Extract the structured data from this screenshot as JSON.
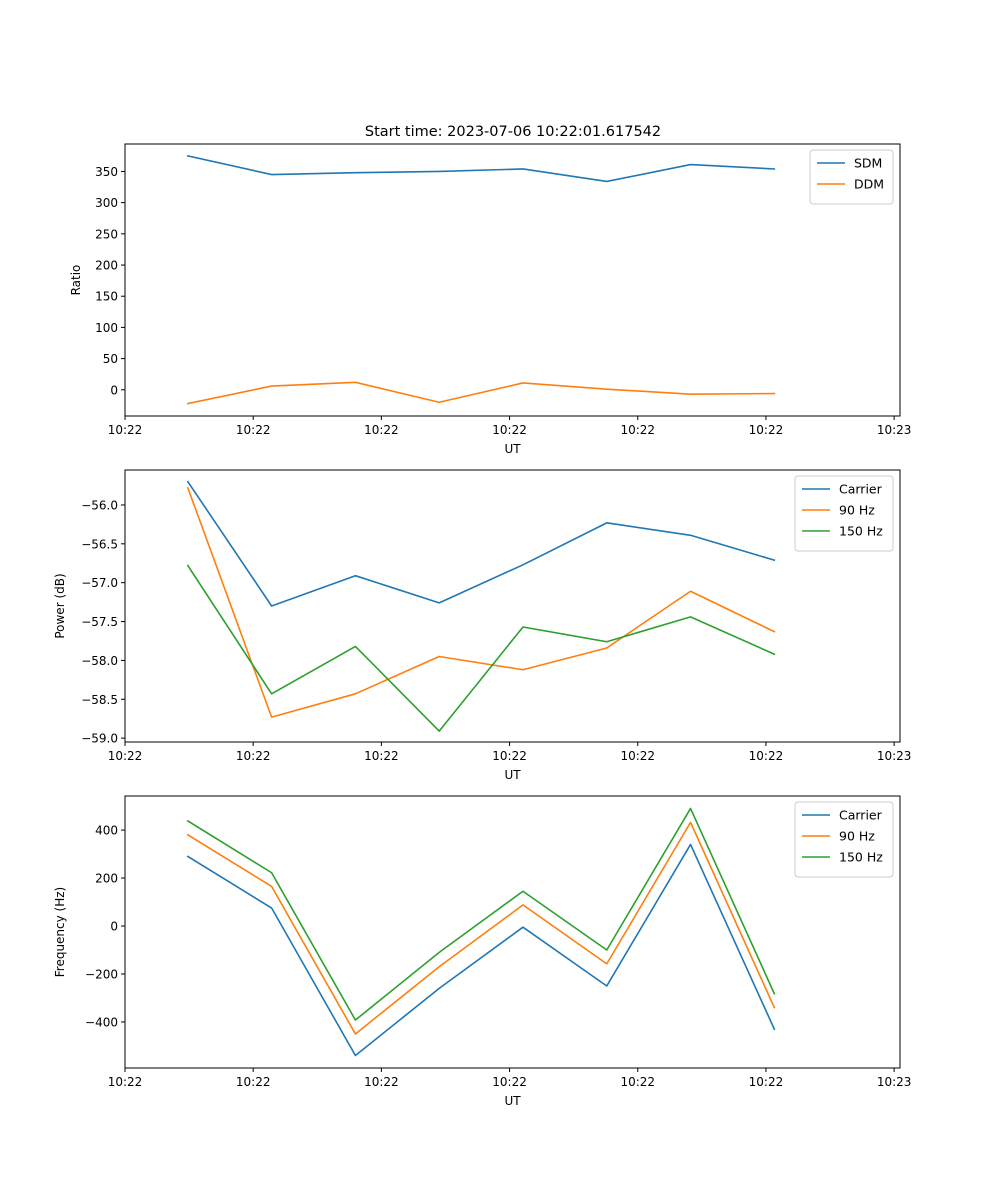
{
  "chart_data": [
    {
      "type": "line",
      "title": "Start time: 2023-07-06 10:22:01.617542",
      "xlabel": "UT",
      "ylabel": "Ratio",
      "x": [
        0,
        1,
        2,
        3,
        4,
        5,
        6,
        7
      ],
      "xlim": [
        -0.75,
        8.5
      ],
      "x_ticks": [
        {
          "x": -0.75,
          "label": "10:22"
        },
        {
          "x": 0.78,
          "label": "10:22"
        },
        {
          "x": 2.31,
          "label": "10:22"
        },
        {
          "x": 3.84,
          "label": "10:22"
        },
        {
          "x": 5.37,
          "label": "10:22"
        },
        {
          "x": 6.9,
          "label": "10:22"
        },
        {
          "x": 8.43,
          "label": "10:23"
        }
      ],
      "ylim": [
        -42,
        394
      ],
      "y_ticks": [
        {
          "y": 0,
          "label": "0"
        },
        {
          "y": 50,
          "label": "50"
        },
        {
          "y": 100,
          "label": "100"
        },
        {
          "y": 150,
          "label": "150"
        },
        {
          "y": 200,
          "label": "200"
        },
        {
          "y": 250,
          "label": "250"
        },
        {
          "y": 300,
          "label": "300"
        },
        {
          "y": 350,
          "label": "350"
        }
      ],
      "legend_position": "top-right",
      "series": [
        {
          "name": "SDM",
          "color": "#1f77b4",
          "values": [
            375,
            345,
            348,
            350,
            354,
            334,
            361,
            354
          ]
        },
        {
          "name": "DDM",
          "color": "#ff7f0e",
          "values": [
            -22,
            6,
            12,
            -20,
            11,
            1,
            -7,
            -6
          ]
        }
      ]
    },
    {
      "type": "line",
      "title": "",
      "xlabel": "UT",
      "ylabel": "Power (dB)",
      "x": [
        0,
        1,
        2,
        3,
        4,
        5,
        6,
        7
      ],
      "xlim": [
        -0.75,
        8.5
      ],
      "x_ticks": [
        {
          "x": -0.75,
          "label": "10:22"
        },
        {
          "x": 0.78,
          "label": "10:22"
        },
        {
          "x": 2.31,
          "label": "10:22"
        },
        {
          "x": 3.84,
          "label": "10:22"
        },
        {
          "x": 5.37,
          "label": "10:22"
        },
        {
          "x": 6.9,
          "label": "10:22"
        },
        {
          "x": 8.43,
          "label": "10:23"
        }
      ],
      "ylim": [
        -59.05,
        -55.55
      ],
      "y_ticks": [
        {
          "y": -59.0,
          "label": "−59.0"
        },
        {
          "y": -58.5,
          "label": "−58.5"
        },
        {
          "y": -58.0,
          "label": "−58.0"
        },
        {
          "y": -57.5,
          "label": "−57.5"
        },
        {
          "y": -57.0,
          "label": "−57.0"
        },
        {
          "y": -56.5,
          "label": "−56.5"
        },
        {
          "y": -56.0,
          "label": "−56.0"
        }
      ],
      "legend_position": "top-right",
      "series": [
        {
          "name": "Carrier",
          "color": "#1f77b4",
          "values": [
            -55.7,
            -57.3,
            -56.91,
            -57.26,
            -56.77,
            -56.23,
            -56.39,
            -56.71
          ]
        },
        {
          "name": "90 Hz",
          "color": "#ff7f0e",
          "values": [
            -55.78,
            -58.73,
            -58.43,
            -57.95,
            -58.12,
            -57.84,
            -57.11,
            -57.63
          ]
        },
        {
          "name": "150 Hz",
          "color": "#2ca02c",
          "values": [
            -56.78,
            -58.43,
            -57.82,
            -58.91,
            -57.57,
            -57.76,
            -57.44,
            -57.92
          ]
        }
      ]
    },
    {
      "type": "line",
      "title": "",
      "xlabel": "UT",
      "ylabel": "Frequency (Hz)",
      "x": [
        0,
        1,
        2,
        3,
        4,
        5,
        6,
        7
      ],
      "xlim": [
        -0.75,
        8.5
      ],
      "x_ticks": [
        {
          "x": -0.75,
          "label": "10:22"
        },
        {
          "x": 0.78,
          "label": "10:22"
        },
        {
          "x": 2.31,
          "label": "10:22"
        },
        {
          "x": 3.84,
          "label": "10:22"
        },
        {
          "x": 5.37,
          "label": "10:22"
        },
        {
          "x": 6.9,
          "label": "10:22"
        },
        {
          "x": 8.43,
          "label": "10:23"
        }
      ],
      "ylim": [
        -592,
        542
      ],
      "y_ticks": [
        {
          "y": -400,
          "label": "−400"
        },
        {
          "y": -200,
          "label": "−200"
        },
        {
          "y": 0,
          "label": "0"
        },
        {
          "y": 200,
          "label": "200"
        },
        {
          "y": 400,
          "label": "400"
        }
      ],
      "legend_position": "top-right",
      "series": [
        {
          "name": "Carrier",
          "color": "#1f77b4",
          "values": [
            290,
            75,
            -540,
            -260,
            -5,
            -250,
            340,
            -430
          ]
        },
        {
          "name": "90 Hz",
          "color": "#ff7f0e",
          "values": [
            380,
            165,
            -450,
            -170,
            88,
            -158,
            432,
            -340
          ]
        },
        {
          "name": "150 Hz",
          "color": "#2ca02c",
          "values": [
            438,
            222,
            -392,
            -110,
            145,
            -100,
            490,
            -282
          ]
        }
      ]
    }
  ]
}
